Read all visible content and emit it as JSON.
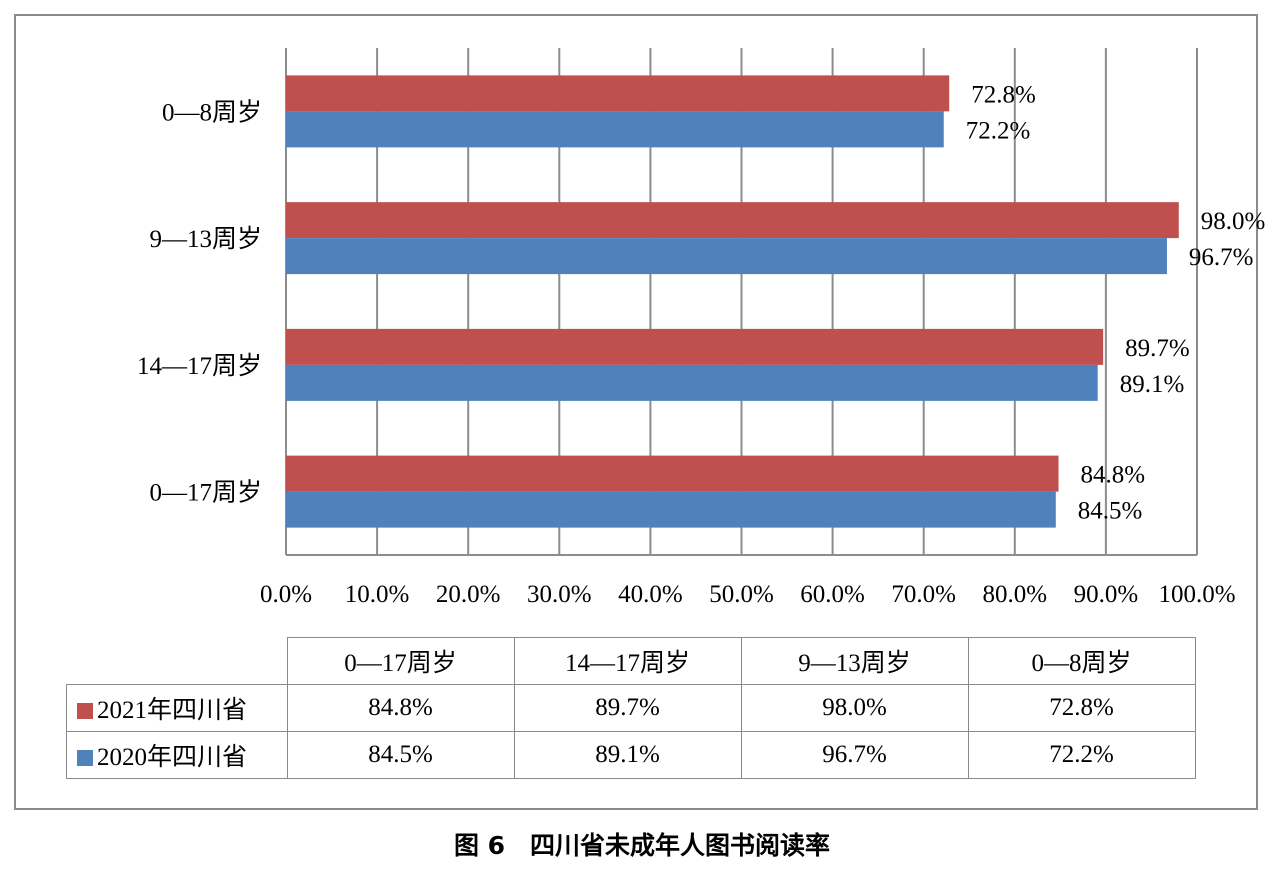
{
  "caption": "图 6　四川省未成年人图书阅读率",
  "chart_data": {
    "type": "bar",
    "orientation": "horizontal",
    "categories": [
      "0—17周岁",
      "14—17周岁",
      "9—13周岁",
      "0—8周岁"
    ],
    "series": [
      {
        "name": "2021年四川省",
        "color": "#c0504d",
        "values": [
          84.8,
          89.7,
          98.0,
          72.8
        ]
      },
      {
        "name": "2020年四川省",
        "color": "#4f81bd",
        "values": [
          84.5,
          89.1,
          96.7,
          72.2
        ]
      }
    ],
    "xlim": [
      0,
      100
    ],
    "xticks": [
      "0.0%",
      "10.0%",
      "20.0%",
      "30.0%",
      "40.0%",
      "50.0%",
      "60.0%",
      "70.0%",
      "80.0%",
      "90.0%",
      "100.0%"
    ],
    "value_format": "percent_1dp",
    "grid": true,
    "legend": "data-table-below"
  },
  "table": {
    "headers": [
      "0—17周岁",
      "14—17周岁",
      "9—13周岁",
      "0—8周岁"
    ],
    "rows": [
      {
        "series": "2021年四川省",
        "color": "#c0504d",
        "cells": [
          "84.8%",
          "89.7%",
          "98.0%",
          "72.8%"
        ]
      },
      {
        "series": "2020年四川省",
        "color": "#4f81bd",
        "cells": [
          "84.5%",
          "89.1%",
          "96.7%",
          "72.2%"
        ]
      }
    ]
  }
}
